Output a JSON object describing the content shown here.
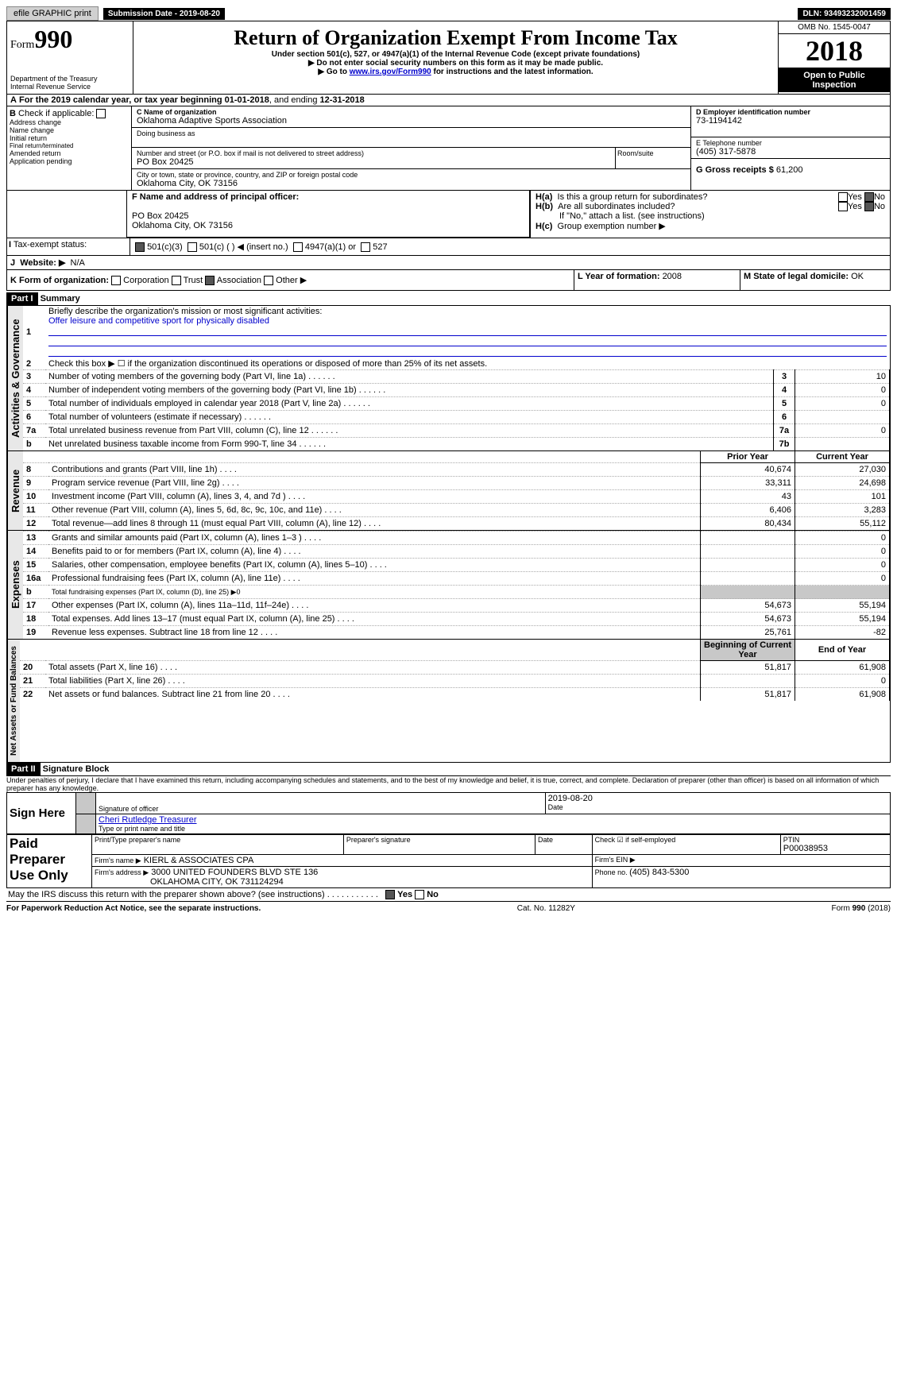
{
  "top": {
    "efile": "efile GRAPHIC print",
    "sub_lbl": "Submission Date - ",
    "sub_date": "2019-08-20",
    "dln_lbl": "DLN: ",
    "dln": "93493232001459"
  },
  "header": {
    "form_pre": "Form",
    "form_num": "990",
    "dept1": "Department of the Treasury",
    "dept2": "Internal Revenue Service",
    "title": "Return of Organization Exempt From Income Tax",
    "sub1": "Under section 501(c), 527, or 4947(a)(1) of the Internal Revenue Code (except private foundations)",
    "sub2": "▶ Do not enter social security numbers on this form as it may be made public.",
    "sub3_pre": "▶ Go to ",
    "sub3_link": "www.irs.gov/Form990",
    "sub3_post": " for instructions and the latest information.",
    "omb": "OMB No. 1545-0047",
    "year": "2018",
    "open": "Open to Public Inspection"
  },
  "A": {
    "text": "For the 2019 calendar year, or tax year beginning 01-01-2018",
    "mid": ", and ending ",
    "end": "12-31-2018"
  },
  "B": {
    "lbl": "Check if applicable:",
    "opts": [
      "Address change",
      "Name change",
      "Initial return",
      "Final return/terminated",
      "Amended return",
      "Application pending"
    ]
  },
  "C": {
    "lbl": "C Name of organization",
    "name": "Oklahoma Adaptive Sports Association",
    "dba_lbl": "Doing business as",
    "dba": "",
    "addr_lbl": "Number and street (or P.O. box if mail is not delivered to street address)",
    "room_lbl": "Room/suite",
    "addr": "PO Box 20425",
    "city_lbl": "City or town, state or province, country, and ZIP or foreign postal code",
    "city": "Oklahoma City, OK  73156"
  },
  "D": {
    "lbl": "D Employer identification number",
    "val": "73-1194142"
  },
  "E": {
    "lbl": "E Telephone number",
    "val": "(405) 317-5878"
  },
  "G": {
    "lbl": "G Gross receipts $",
    "val": "61,200"
  },
  "H": {
    "a": "Is this a group return for subordinates?",
    "b": "Are all subordinates included?",
    "b2": "If \"No,\" attach a list. (see instructions)",
    "c": "Group exemption number ▶",
    "yes": "Yes",
    "no": "No"
  },
  "F": {
    "lbl": "F Name and address of principal officer:",
    "l1": "PO Box 20425",
    "l2": "Oklahoma City, OK  73156"
  },
  "I": {
    "lbl": "Tax-exempt status:",
    "o1": "501(c)(3)",
    "o2": "501(c) (  ) ◀ (insert no.)",
    "o3": "4947(a)(1) or",
    "o4": "527"
  },
  "J": {
    "lbl": "Website: ▶",
    "val": "N/A"
  },
  "K": {
    "lbl": "K Form of organization:",
    "o1": "Corporation",
    "o2": "Trust",
    "o3": "Association",
    "o4": "Other ▶"
  },
  "L": {
    "lbl": "L Year of formation: ",
    "val": "2008"
  },
  "M": {
    "lbl": "M State of legal domicile: ",
    "val": "OK"
  },
  "parts": {
    "p1": "Part I",
    "p1t": "Summary",
    "p2": "Part II",
    "p2t": "Signature Block"
  },
  "s1": {
    "l1_lbl": "1",
    "l1": "Briefly describe the organization's mission or most significant activities:",
    "l1v": "Offer leisure and competitive sport for physically disabled",
    "l2_lbl": "2",
    "l2": "Check this box ▶ ☐ if the organization discontinued its operations or disposed of more than 25% of its net assets.",
    "rows": [
      {
        "n": "3",
        "t": "Number of voting members of the governing body (Part VI, line 1a)",
        "box": "3",
        "v": "10"
      },
      {
        "n": "4",
        "t": "Number of independent voting members of the governing body (Part VI, line 1b)",
        "box": "4",
        "v": "0"
      },
      {
        "n": "5",
        "t": "Total number of individuals employed in calendar year 2018 (Part V, line 2a)",
        "box": "5",
        "v": "0"
      },
      {
        "n": "6",
        "t": "Total number of volunteers (estimate if necessary)",
        "box": "6",
        "v": ""
      },
      {
        "n": "7a",
        "t": "Total unrelated business revenue from Part VIII, column (C), line 12",
        "box": "7a",
        "v": "0"
      },
      {
        "n": "b",
        "t": "Net unrelated business taxable income from Form 990-T, line 34",
        "box": "7b",
        "v": ""
      }
    ]
  },
  "fin": {
    "hdr_py": "Prior Year",
    "hdr_cy": "Current Year",
    "hdr_bcy": "Beginning of Current Year",
    "hdr_eoy": "End of Year",
    "rev": [
      {
        "n": "8",
        "t": "Contributions and grants (Part VIII, line 1h)",
        "p": "40,674",
        "c": "27,030"
      },
      {
        "n": "9",
        "t": "Program service revenue (Part VIII, line 2g)",
        "p": "33,311",
        "c": "24,698"
      },
      {
        "n": "10",
        "t": "Investment income (Part VIII, column (A), lines 3, 4, and 7d )",
        "p": "43",
        "c": "101"
      },
      {
        "n": "11",
        "t": "Other revenue (Part VIII, column (A), lines 5, 6d, 8c, 9c, 10c, and 11e)",
        "p": "6,406",
        "c": "3,283"
      },
      {
        "n": "12",
        "t": "Total revenue—add lines 8 through 11 (must equal Part VIII, column (A), line 12)",
        "p": "80,434",
        "c": "55,112"
      }
    ],
    "exp": [
      {
        "n": "13",
        "t": "Grants and similar amounts paid (Part IX, column (A), lines 1–3 )",
        "p": "",
        "c": "0"
      },
      {
        "n": "14",
        "t": "Benefits paid to or for members (Part IX, column (A), line 4)",
        "p": "",
        "c": "0"
      },
      {
        "n": "15",
        "t": "Salaries, other compensation, employee benefits (Part IX, column (A), lines 5–10)",
        "p": "",
        "c": "0"
      },
      {
        "n": "16a",
        "t": "Professional fundraising fees (Part IX, column (A), line 11e)",
        "p": "",
        "c": "0"
      },
      {
        "n": "b",
        "t": "Total fundraising expenses (Part IX, column (D), line 25) ▶0",
        "p": null,
        "c": null
      },
      {
        "n": "17",
        "t": "Other expenses (Part IX, column (A), lines 11a–11d, 11f–24e)",
        "p": "54,673",
        "c": "55,194"
      },
      {
        "n": "18",
        "t": "Total expenses. Add lines 13–17 (must equal Part IX, column (A), line 25)",
        "p": "54,673",
        "c": "55,194"
      },
      {
        "n": "19",
        "t": "Revenue less expenses. Subtract line 18 from line 12",
        "p": "25,761",
        "c": "-82"
      }
    ],
    "na": [
      {
        "n": "20",
        "t": "Total assets (Part X, line 16)",
        "p": "51,817",
        "c": "61,908"
      },
      {
        "n": "21",
        "t": "Total liabilities (Part X, line 26)",
        "p": "",
        "c": "0"
      },
      {
        "n": "22",
        "t": "Net assets or fund balances. Subtract line 21 from line 20",
        "p": "51,817",
        "c": "61,908"
      }
    ]
  },
  "sig": {
    "perj": "Under penalties of perjury, I declare that I have examined this return, including accompanying schedules and statements, and to the best of my knowledge and belief, it is true, correct, and complete. Declaration of preparer (other than officer) is based on all information of which preparer has any knowledge.",
    "sign_here": "Sign Here",
    "sig_of": "Signature of officer",
    "date_lbl": "Date",
    "date": "2019-08-20",
    "name": "Cheri Rutledge  Treasurer",
    "name_lbl": "Type or print name and title"
  },
  "prep": {
    "lbl": "Paid Preparer Use Only",
    "c1": "Print/Type preparer's name",
    "c2": "Preparer's signature",
    "c3": "Date",
    "c4_a": "Check ☑ if self-employed",
    "c5": "PTIN",
    "ptin": "P00038953",
    "fn_lbl": "Firm's name  ▶",
    "fn": "KIERL & ASSOCIATES CPA",
    "fein_lbl": "Firm's EIN ▶",
    "fa_lbl": "Firm's address ▶",
    "fa1": "3000 UNITED FOUNDERS BLVD STE 136",
    "fa2": "OKLAHOMA CITY, OK  731124294",
    "ph_lbl": "Phone no. ",
    "ph": "(405) 843-5300"
  },
  "disc": {
    "q": "May the IRS discuss this return with the preparer shown above? (see instructions)",
    "y": "Yes",
    "n": "No"
  },
  "foot": {
    "l": "For Paperwork Reduction Act Notice, see the separate instructions.",
    "m": "Cat. No. 11282Y",
    "r": "Form 990 (2018)"
  },
  "vlabels": {
    "ag": "Activities & Governance",
    "rev": "Revenue",
    "exp": "Expenses",
    "na": "Net Assets or Fund Balances"
  }
}
